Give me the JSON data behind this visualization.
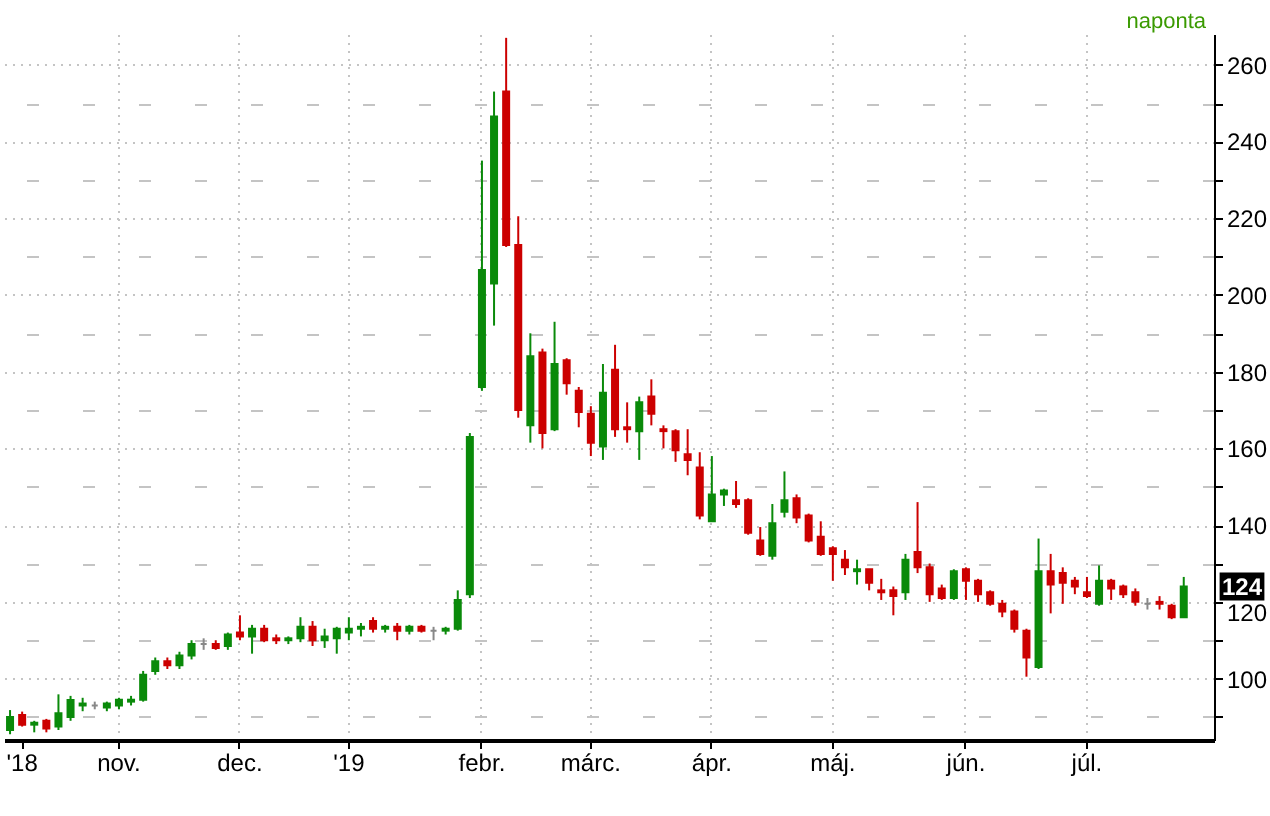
{
  "chart_data": {
    "type": "candlestick",
    "categories": [
      null,
      "'18",
      null,
      null,
      null,
      null,
      null,
      null,
      null,
      "nov.",
      null,
      null,
      null,
      null,
      null,
      null,
      null,
      null,
      null,
      "dec.",
      null,
      null,
      null,
      null,
      null,
      null,
      null,
      null,
      "'19",
      null,
      null,
      null,
      null,
      null,
      null,
      null,
      null,
      null,
      null,
      "febr.",
      null,
      null,
      null,
      null,
      null,
      null,
      null,
      null,
      "márc.",
      null,
      null,
      null,
      null,
      null,
      null,
      null,
      null,
      null,
      "ápr.",
      null,
      null,
      null,
      null,
      null,
      null,
      null,
      null,
      null,
      "máj.",
      null,
      null,
      null,
      null,
      null,
      null,
      null,
      null,
      null,
      null,
      "jún.",
      null,
      null,
      null,
      null,
      null,
      null,
      null,
      null,
      null,
      "júl.",
      null,
      null,
      null,
      null,
      null,
      null,
      null,
      null
    ],
    "ohlc": [
      [
        86.6,
        91.8,
        85.5,
        90
      ],
      [
        90.5,
        91.4,
        87.5,
        88
      ],
      [
        88,
        89,
        86,
        88.5
      ],
      [
        89,
        89.5,
        86,
        87
      ],
      [
        87.5,
        95.9,
        86.6,
        91
      ],
      [
        90,
        95.5,
        89,
        94.4
      ],
      [
        93,
        95,
        91.5,
        93.5
      ],
      [
        93,
        94,
        92,
        93
      ],
      [
        92.5,
        94,
        91.5,
        93.5
      ],
      [
        93,
        95,
        92,
        94.5
      ],
      [
        94,
        95.5,
        93,
        94.5
      ],
      [
        94.5,
        102,
        94,
        101
      ],
      [
        102,
        105.5,
        101,
        104.5
      ],
      [
        104.5,
        105.5,
        102.5,
        103.5
      ],
      [
        103.5,
        107,
        102.5,
        106
      ],
      [
        106,
        110,
        105,
        109
      ],
      [
        109,
        110.5,
        107.5,
        109
      ],
      [
        109,
        110,
        107.5,
        108
      ],
      [
        108.5,
        112,
        107.5,
        111.5
      ],
      [
        112,
        116.5,
        110,
        111
      ],
      [
        111,
        114,
        106.5,
        113
      ],
      [
        113,
        114,
        109.5,
        110
      ],
      [
        110.5,
        111.5,
        109,
        110
      ],
      [
        110,
        111,
        109,
        110.5
      ],
      [
        110.5,
        116,
        109.5,
        113.5
      ],
      [
        113.5,
        115,
        108.5,
        110
      ],
      [
        110,
        113,
        108,
        111
      ],
      [
        110.5,
        113.5,
        106.5,
        113
      ],
      [
        112,
        116,
        110,
        113
      ],
      [
        113,
        114.5,
        111,
        113.5
      ],
      [
        115,
        116,
        112,
        113
      ],
      [
        113,
        114,
        112,
        113.5
      ],
      [
        113.5,
        114.5,
        110,
        112.5
      ],
      [
        112.5,
        114,
        111.5,
        113.5
      ],
      [
        113.5,
        114,
        112,
        112.5
      ],
      [
        112.5,
        113.5,
        110,
        112.5
      ],
      [
        112.5,
        113.5,
        111.5,
        113
      ],
      [
        113,
        123,
        112.5,
        120.5
      ],
      [
        122,
        164,
        121,
        163
      ],
      [
        176,
        235,
        175,
        206.5
      ],
      [
        203,
        253,
        192,
        246.5
      ],
      [
        253,
        267,
        212.5,
        213
      ],
      [
        213,
        220.5,
        168,
        170
      ],
      [
        166,
        190,
        161.5,
        184
      ],
      [
        185,
        186,
        160,
        164
      ],
      [
        165,
        193,
        164.5,
        182
      ],
      [
        183,
        183.5,
        174,
        177
      ],
      [
        175,
        176,
        165.5,
        169.5
      ],
      [
        169,
        171,
        158,
        161.5
      ],
      [
        160.5,
        182,
        157,
        174.5
      ],
      [
        180.5,
        187,
        163,
        165
      ],
      [
        165.5,
        172,
        161.5,
        165
      ],
      [
        164.5,
        173.5,
        157,
        172
      ],
      [
        173.5,
        178,
        166,
        169
      ],
      [
        165,
        166,
        160,
        164.5
      ],
      [
        164.5,
        165,
        156.5,
        159.5
      ],
      [
        158.5,
        165,
        153,
        157
      ],
      [
        155,
        159,
        141.5,
        142.5
      ],
      [
        141,
        158,
        141,
        148
      ],
      [
        148,
        149.5,
        145,
        149
      ],
      [
        146.5,
        151.5,
        144.5,
        145.5
      ],
      [
        146.5,
        147,
        137.5,
        138
      ],
      [
        136,
        139.5,
        132,
        132.5
      ],
      [
        132,
        145.5,
        131,
        140.5
      ],
      [
        143.5,
        154,
        142,
        146.5
      ],
      [
        147,
        148,
        140.5,
        142
      ],
      [
        142.5,
        143,
        135.5,
        136
      ],
      [
        137,
        141,
        132,
        132.5
      ],
      [
        134,
        134.5,
        125.5,
        132.5
      ],
      [
        131,
        133.5,
        127,
        129
      ],
      [
        128,
        131,
        124.5,
        128.5
      ],
      [
        128.5,
        128.5,
        123,
        125
      ],
      [
        123,
        126,
        120.5,
        122.5
      ],
      [
        123,
        124,
        116.5,
        121.5
      ],
      [
        122.5,
        132.5,
        120.5,
        131
      ],
      [
        133,
        146,
        127.5,
        129
      ],
      [
        129,
        130,
        120,
        122
      ],
      [
        123.5,
        124.5,
        120.5,
        121
      ],
      [
        121,
        128.5,
        120.5,
        128
      ],
      [
        128.5,
        129,
        120.5,
        125.5
      ],
      [
        125.5,
        126,
        120,
        122
      ],
      [
        122.5,
        123,
        119,
        119.5
      ],
      [
        119.5,
        120.5,
        116,
        117.5
      ],
      [
        117.5,
        118,
        112,
        113
      ],
      [
        112.5,
        113,
        100.5,
        105.5
      ],
      [
        103,
        136.5,
        102.5,
        128
      ],
      [
        128,
        132.5,
        117,
        124.5
      ],
      [
        127.5,
        129,
        119.5,
        125
      ],
      [
        125.5,
        126.5,
        122,
        124
      ],
      [
        122.5,
        126.5,
        121,
        121.5
      ],
      [
        119.5,
        129.5,
        119,
        125.5
      ],
      [
        125.5,
        126,
        120.5,
        123.5
      ],
      [
        124,
        124.5,
        121,
        122
      ],
      [
        122.5,
        123.5,
        119,
        120
      ],
      [
        119.5,
        121,
        118,
        119.5
      ],
      [
        120,
        121.5,
        118,
        119.5
      ],
      [
        119,
        119.5,
        115.5,
        116
      ],
      [
        116,
        126.5,
        116,
        124
      ]
    ],
    "colors": [
      "#0a8a0a",
      "#cc0000",
      "#0a8a0a",
      "#cc0000",
      "#0a8a0a",
      "#0a8a0a",
      "#0a8a0a",
      "#888888",
      "#0a8a0a",
      "#0a8a0a",
      "#0a8a0a",
      "#0a8a0a",
      "#0a8a0a",
      "#cc0000",
      "#0a8a0a",
      "#0a8a0a",
      "#888888",
      "#cc0000",
      "#0a8a0a",
      "#cc0000",
      "#0a8a0a",
      "#cc0000",
      "#cc0000",
      "#0a8a0a",
      "#0a8a0a",
      "#cc0000",
      "#0a8a0a",
      "#0a8a0a",
      "#0a8a0a",
      "#0a8a0a",
      "#cc0000",
      "#0a8a0a",
      "#cc0000",
      "#0a8a0a",
      "#cc0000",
      "#888888",
      "#0a8a0a",
      "#0a8a0a",
      "#0a8a0a",
      "#0a8a0a",
      "#0a8a0a",
      "#cc0000",
      "#cc0000",
      "#0a8a0a",
      "#cc0000",
      "#0a8a0a",
      "#cc0000",
      "#cc0000",
      "#cc0000",
      "#0a8a0a",
      "#cc0000",
      "#cc0000",
      "#0a8a0a",
      "#cc0000",
      "#cc0000",
      "#cc0000",
      "#cc0000",
      "#cc0000",
      "#0a8a0a",
      "#0a8a0a",
      "#cc0000",
      "#cc0000",
      "#cc0000",
      "#0a8a0a",
      "#0a8a0a",
      "#cc0000",
      "#cc0000",
      "#cc0000",
      "#cc0000",
      "#cc0000",
      "#0a8a0a",
      "#cc0000",
      "#cc0000",
      "#cc0000",
      "#0a8a0a",
      "#cc0000",
      "#cc0000",
      "#cc0000",
      "#0a8a0a",
      "#cc0000",
      "#cc0000",
      "#cc0000",
      "#cc0000",
      "#cc0000",
      "#cc0000",
      "#0a8a0a",
      "#cc0000",
      "#cc0000",
      "#cc0000",
      "#cc0000",
      "#0a8a0a",
      "#cc0000",
      "#cc0000",
      "#cc0000",
      "#888888",
      "#cc0000",
      "#cc0000",
      "#0a8a0a"
    ],
    "ylim": [
      84,
      268
    ],
    "yticks": [
      {
        "value": 90,
        "label": null
      },
      100,
      {
        "value": 110,
        "label": null
      },
      120,
      {
        "value": 130,
        "label": null
      },
      140,
      {
        "value": 150,
        "label": null
      },
      160,
      {
        "value": 170,
        "label": null
      },
      180,
      {
        "value": 190,
        "label": null
      },
      200,
      {
        "value": 210,
        "label": null
      },
      220,
      {
        "value": 230,
        "label": null
      },
      240,
      {
        "value": 250,
        "label": null
      },
      260
    ],
    "grid": true,
    "annotations": [
      "naponta",
      {
        "text": "124",
        "y": 124
      }
    ]
  }
}
